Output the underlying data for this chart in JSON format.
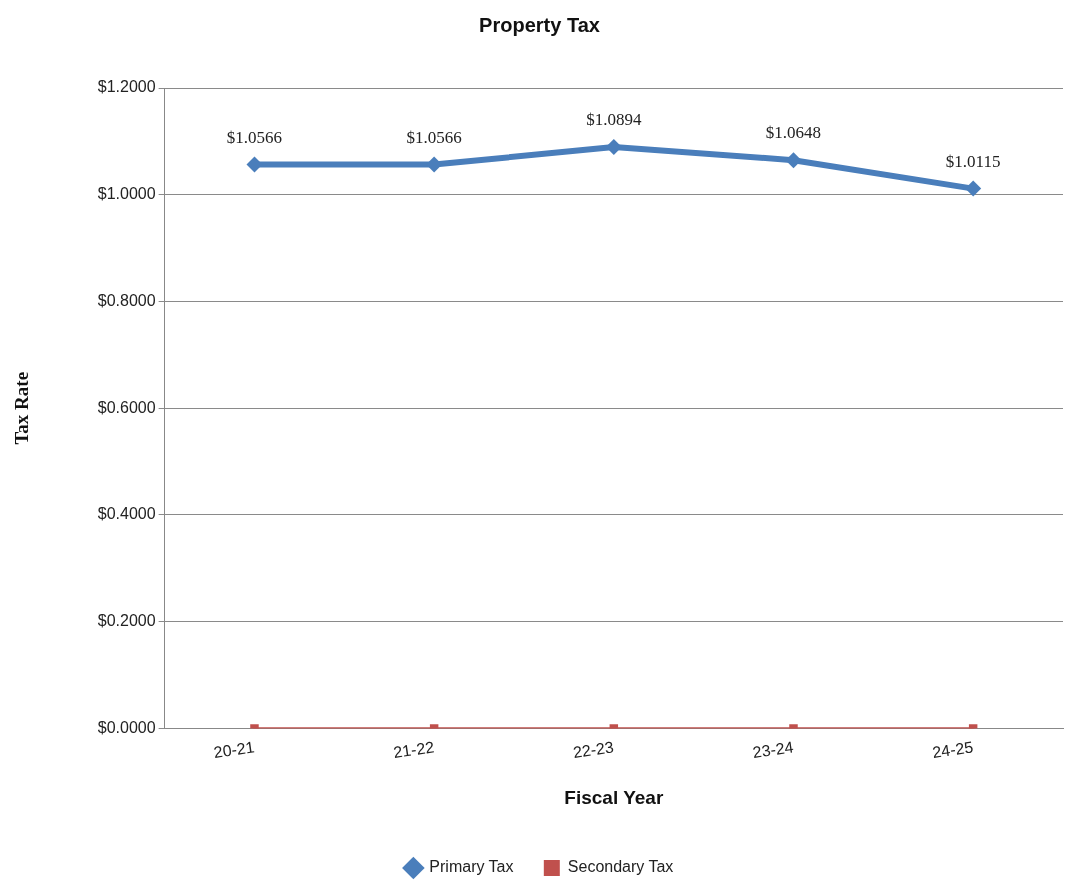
{
  "chart_data": {
    "type": "line",
    "title": "Property Tax",
    "xlabel": "Fiscal Year",
    "ylabel": "Tax Rate",
    "categories": [
      "20-21",
      "21-22",
      "22-23",
      "23-24",
      "24-25"
    ],
    "series": [
      {
        "name": "Primary Tax",
        "color": "#4a7ebb",
        "marker": "diamond",
        "values": [
          1.0566,
          1.0566,
          1.0894,
          1.0648,
          1.0115
        ],
        "value_labels": [
          "$1.0566",
          "$1.0566",
          "$1.0894",
          "$1.0648",
          "$1.0115"
        ]
      },
      {
        "name": "Secondary Tax",
        "color": "#c0504d",
        "marker": "square",
        "values": [
          0,
          0,
          0,
          0,
          0
        ]
      }
    ],
    "ylim": [
      0,
      1.2
    ],
    "yticks": [
      {
        "value": 0,
        "label": "$0.0000"
      },
      {
        "value": 0.2,
        "label": "$0.2000"
      },
      {
        "value": 0.4,
        "label": "$0.4000"
      },
      {
        "value": 0.6,
        "label": "$0.6000"
      },
      {
        "value": 0.8,
        "label": "$0.8000"
      },
      {
        "value": 1,
        "label": "$1.0000"
      },
      {
        "value": 1.2,
        "label": "$1.2000"
      }
    ],
    "grid": "y",
    "legend": "bottom",
    "line_style": "solid"
  }
}
